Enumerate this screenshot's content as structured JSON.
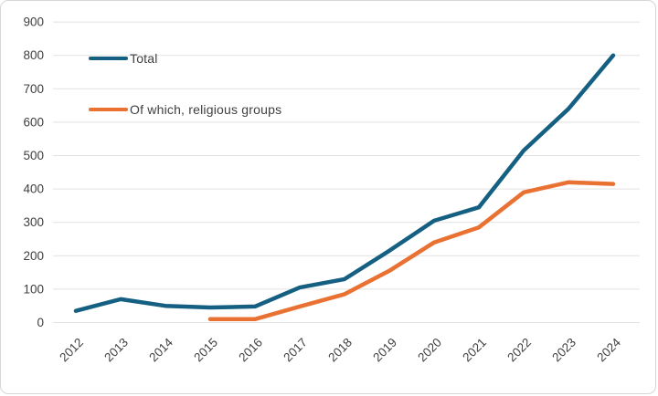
{
  "chart_data": {
    "type": "line",
    "title": "",
    "xlabel": "",
    "ylabel": "",
    "x": [
      2012,
      2013,
      2014,
      2015,
      2016,
      2017,
      2018,
      2019,
      2020,
      2021,
      2022,
      2023,
      2024
    ],
    "series": [
      {
        "name": "Total",
        "color": "#156082",
        "values": [
          35,
          70,
          50,
          45,
          48,
          105,
          130,
          215,
          305,
          345,
          515,
          640,
          800
        ]
      },
      {
        "name": "Of which, religious groups",
        "color": "#E97132",
        "values": [
          null,
          null,
          null,
          10,
          10,
          48,
          85,
          155,
          240,
          285,
          390,
          420,
          415
        ]
      }
    ],
    "ylim": [
      0,
      900
    ],
    "ytick_step": 100,
    "grid": "horizontal",
    "legend_position": "top-left-inside"
  },
  "legend": {
    "items": [
      {
        "label": "Total",
        "color": "#156082"
      },
      {
        "label": "Of which, religious groups",
        "color": "#E97132"
      }
    ]
  },
  "axes": {
    "y_tick_labels": [
      "0",
      "100",
      "200",
      "300",
      "400",
      "500",
      "600",
      "700",
      "800",
      "900"
    ],
    "x_tick_labels": [
      "2012",
      "2013",
      "2014",
      "2015",
      "2016",
      "2017",
      "2018",
      "2019",
      "2020",
      "2021",
      "2022",
      "2023",
      "2024"
    ]
  },
  "colors": {
    "text": "#404040",
    "grid": "#e2e2e2",
    "border": "#d6d6d6",
    "background": "#ffffff"
  }
}
